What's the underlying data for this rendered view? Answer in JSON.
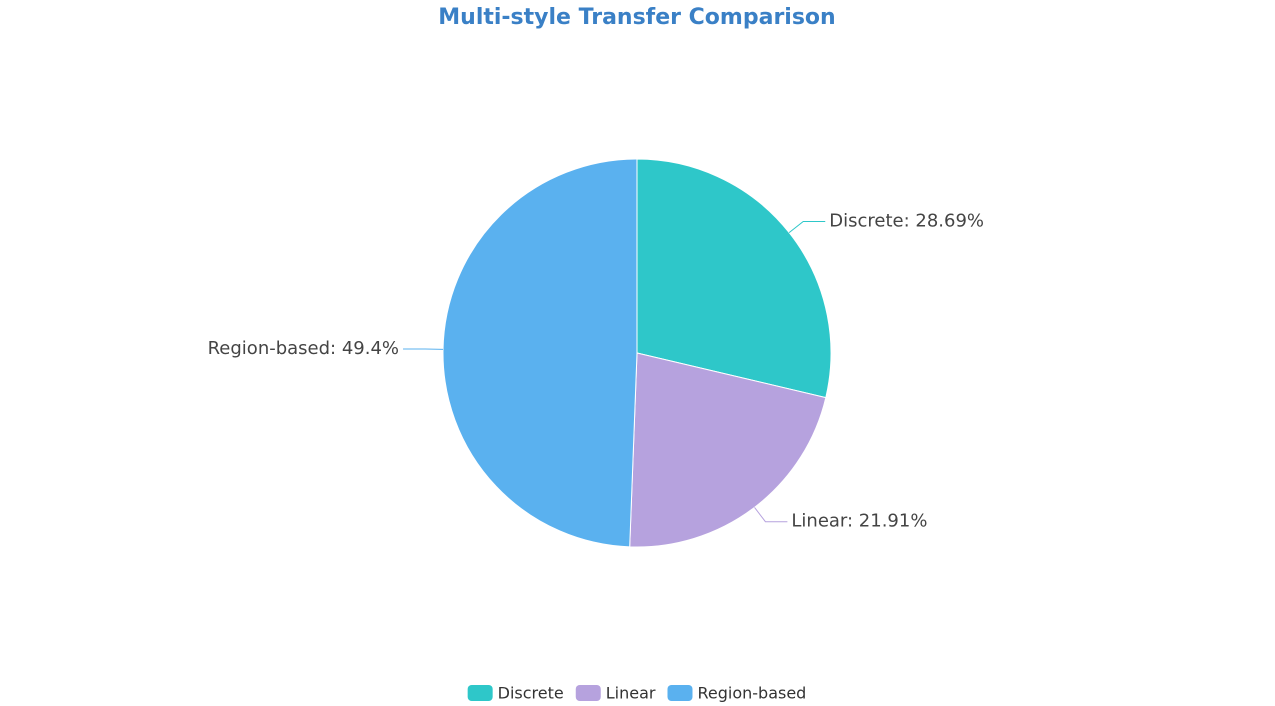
{
  "chart_data": {
    "type": "pie",
    "title": "Multi-style Transfer Comparison",
    "categories": [
      "Discrete",
      "Linear",
      "Region-based"
    ],
    "values": [
      28.69,
      21.91,
      49.4
    ],
    "value_labels": [
      "Discrete: 28.69%",
      "Linear: 21.91%",
      "Region-based: 49.4%"
    ],
    "colors": [
      "#2ec7c9",
      "#b6a2de",
      "#5ab1ef"
    ]
  }
}
